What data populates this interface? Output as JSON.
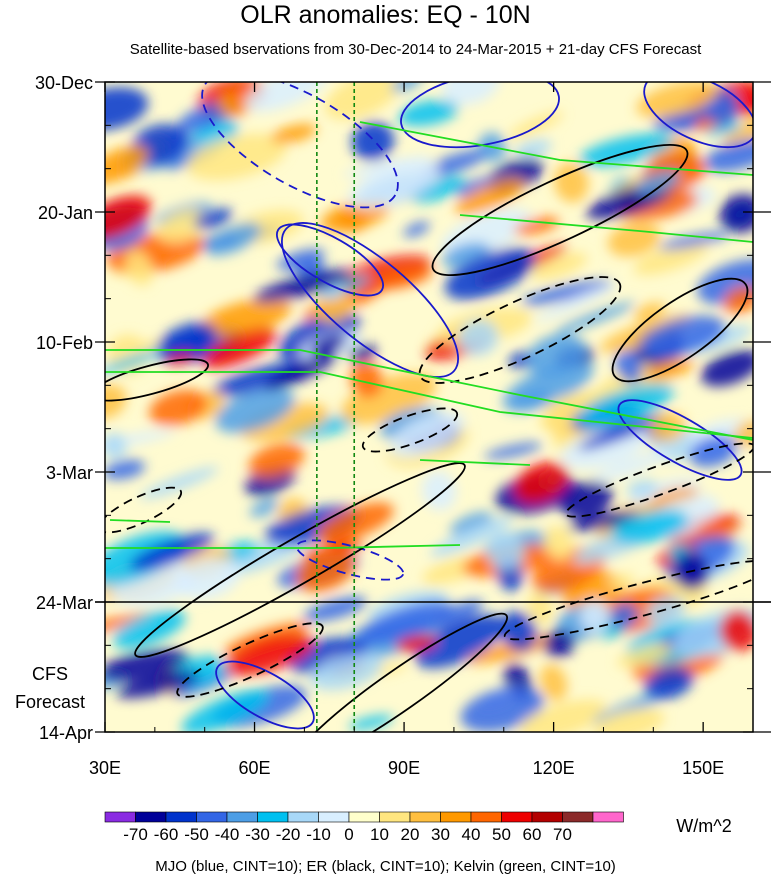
{
  "chart_data": {
    "type": "heatmap",
    "title": "OLR anomalies: EQ - 10N",
    "subtitle": "Satellite-based bservations from 30-Dec-2014 to 24-Mar-2015 + 21-day CFS Forecast",
    "x_tick_labels": [
      "30E",
      "60E",
      "90E",
      "120E",
      "150E"
    ],
    "x_ticks": [
      30,
      60,
      90,
      120,
      150
    ],
    "xlim": [
      30,
      160
    ],
    "y_tick_labels": [
      "30-Dec",
      "20-Jan",
      "10-Feb",
      "3-Mar",
      "24-Mar",
      "14-Apr"
    ],
    "y_ticks_days": [
      0,
      21,
      42,
      63,
      84,
      105
    ],
    "ylim_days": [
      0,
      105
    ],
    "forecast_start_label": "24-Mar",
    "forecast_label_lines": [
      "CFS",
      "Forecast"
    ],
    "colorbar": {
      "unit": "W/m^2",
      "tick_labels": [
        "-70",
        "-60",
        "-50",
        "-40",
        "-30",
        "-20",
        "-10",
        "0",
        "10",
        "20",
        "30",
        "40",
        "50",
        "60",
        "70"
      ],
      "colors": [
        "#8a2be2",
        "#000099",
        "#0033cc",
        "#3366e6",
        "#4d9ee6",
        "#00c0f0",
        "#a8d8f8",
        "#d9efff",
        "#ffffcc",
        "#ffe680",
        "#ffbf40",
        "#ff9900",
        "#ff6600",
        "#ee0000",
        "#b30000",
        "#8b2a2a",
        "#ff66cc"
      ]
    },
    "reference_longitudes": [
      72.5,
      80
    ],
    "legend_text": "MJO (blue, CINT=10); ER (black, CINT=10); Kelvin (green, CINT=10)",
    "series": [
      {
        "name": "MJO",
        "color": "#1a1acc"
      },
      {
        "name": "ER",
        "color": "#000000"
      },
      {
        "name": "Kelvin",
        "color": "#22dd22"
      }
    ]
  }
}
